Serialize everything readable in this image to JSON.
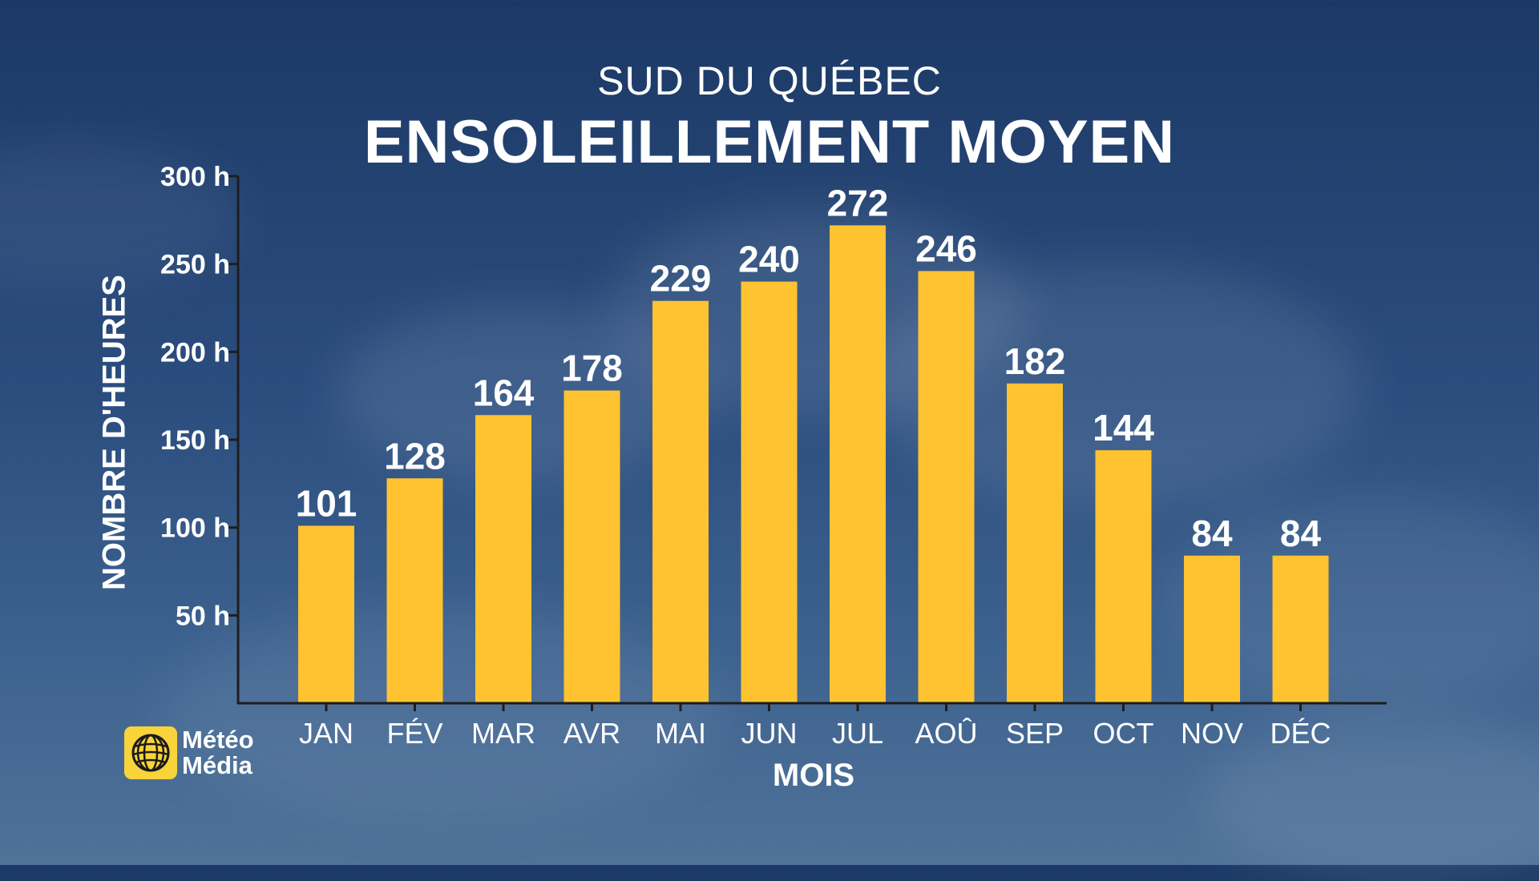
{
  "header": {
    "subtitle": "SUD DU QUÉBEC",
    "title": "ENSOLEILLEMENT MOYEN"
  },
  "colors": {
    "bar": "#ffc332",
    "axis": "#1e1e1e",
    "text": "#ffffff",
    "logo": "#f8d33a"
  },
  "chart_data": {
    "type": "bar",
    "title": "ENSOLEILLEMENT MOYEN",
    "subtitle": "SUD DU QUÉBEC",
    "xlabel": "MOIS",
    "ylabel": "NOMBRE D'HEURES",
    "categories": [
      "JAN",
      "FÉV",
      "MAR",
      "AVR",
      "MAI",
      "JUN",
      "JUL",
      "AOÛ",
      "SEP",
      "OCT",
      "NOV",
      "DÉC"
    ],
    "values": [
      101,
      128,
      164,
      178,
      229,
      240,
      272,
      246,
      182,
      144,
      84,
      84
    ],
    "ylim": [
      0,
      300
    ],
    "yticks": [
      50,
      100,
      150,
      200,
      250,
      300
    ],
    "ytick_labels": [
      "50 h",
      "100 h",
      "150 h",
      "200 h",
      "250 h",
      "300 h"
    ],
    "grid": false,
    "data_labels": true
  },
  "logo": {
    "line1": "Météo",
    "line2": "Média",
    "icon": "globe-sun-icon"
  }
}
